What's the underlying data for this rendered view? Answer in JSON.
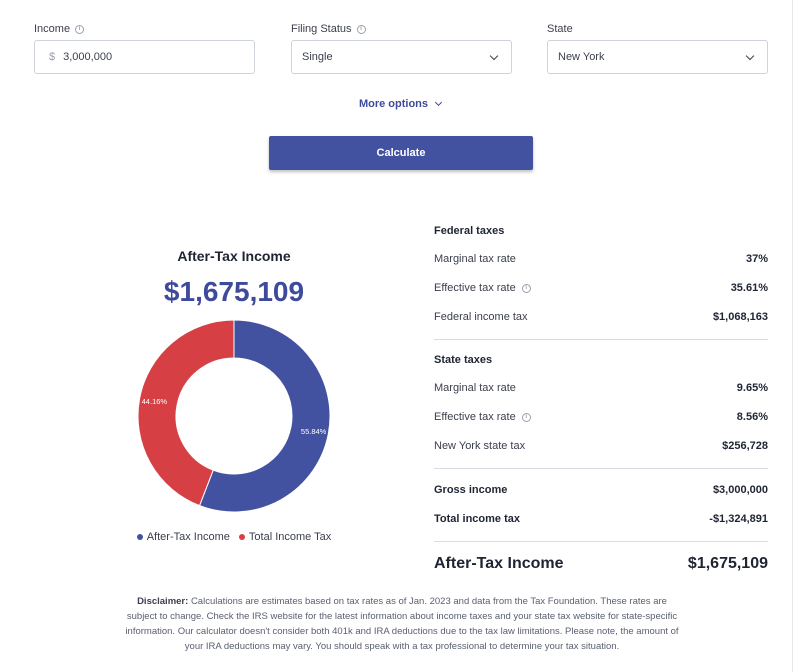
{
  "form": {
    "income": {
      "label": "Income",
      "currency": "$",
      "value": "3,000,000"
    },
    "filing_status": {
      "label": "Filing Status",
      "value": "Single"
    },
    "state": {
      "label": "State",
      "value": "New York"
    },
    "more_options": "More options",
    "calculate": "Calculate"
  },
  "summary": {
    "title": "After-Tax Income",
    "amount": "$1,675,109"
  },
  "chart_data": {
    "type": "pie",
    "categories": [
      "After-Tax Income",
      "Total Income Tax"
    ],
    "values": [
      55.84,
      44.16
    ],
    "labels": [
      "55.84%",
      "44.16%"
    ],
    "colors": [
      "#4352a0",
      "#d64045"
    ],
    "legend": "bottom"
  },
  "federal": {
    "title": "Federal taxes",
    "marginal_label": "Marginal tax rate",
    "marginal_value": "37%",
    "effective_label": "Effective tax rate",
    "effective_value": "35.61%",
    "income_tax_label": "Federal income tax",
    "income_tax_value": "$1,068,163"
  },
  "state_taxes": {
    "title": "State taxes",
    "marginal_label": "Marginal tax rate",
    "marginal_value": "9.65%",
    "effective_label": "Effective tax rate",
    "effective_value": "8.56%",
    "state_tax_label": "New York state tax",
    "state_tax_value": "$256,728"
  },
  "totals": {
    "gross_label": "Gross income",
    "gross_value": "$3,000,000",
    "total_tax_label": "Total income tax",
    "total_tax_value": "-$1,324,891",
    "after_tax_label": "After-Tax Income",
    "after_tax_value": "$1,675,109"
  },
  "disclaimer": {
    "label": "Disclaimer:",
    "text": "Calculations are estimates based on tax rates as of Jan. 2023 and data from the Tax Foundation. These rates are subject to change. Check the IRS website for the latest information about income taxes and your state tax website for state-specific information. Our calculator doesn't consider both 401k and IRA deductions due to the tax law limitations. Please note, the amount of your IRA deductions may vary. You should speak with a tax professional to determine your tax situation."
  }
}
